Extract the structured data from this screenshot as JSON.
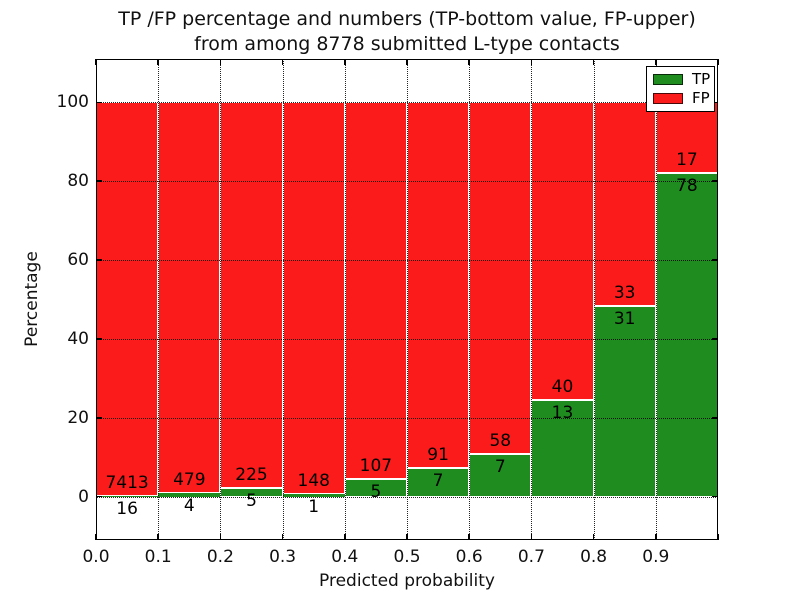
{
  "figure": {
    "title_line1": "TP /FP percentage and numbers (TP-bottom value, FP-upper)",
    "title_line2": "from among 8778 submitted L-type contacts"
  },
  "axes": {
    "xlabel": "Predicted probability",
    "ylabel": "Percentage",
    "x_tick_labels": [
      "0.0",
      "0.1",
      "0.2",
      "0.3",
      "0.4",
      "0.5",
      "0.6",
      "0.7",
      "0.8",
      "0.9"
    ],
    "y_tick_labels": [
      "0",
      "20",
      "40",
      "60",
      "80",
      "100"
    ],
    "y_tick_values": [
      0,
      20,
      40,
      60,
      80,
      100
    ]
  },
  "legend": {
    "items": [
      {
        "label": "TP",
        "color": "#1e8c1e"
      },
      {
        "label": "FP",
        "color": "#fb1b1b"
      }
    ]
  },
  "chart_data": {
    "type": "bar",
    "stacked": true,
    "orientation": "vertical",
    "title": "TP /FP percentage and numbers (TP-bottom value, FP-upper) from among 8778 submitted L-type contacts",
    "xlabel": "Predicted probability",
    "ylabel": "Percentage",
    "x_bins": [
      0.0,
      0.1,
      0.2,
      0.3,
      0.4,
      0.5,
      0.6,
      0.7,
      0.8,
      0.9
    ],
    "bin_width": 0.1,
    "series": [
      {
        "name": "TP",
        "color": "#1e8c1e",
        "counts": [
          16,
          4,
          5,
          1,
          5,
          7,
          7,
          13,
          31,
          78
        ],
        "percent": [
          0.22,
          0.83,
          2.17,
          0.67,
          4.46,
          7.14,
          10.77,
          24.53,
          48.44,
          82.11
        ]
      },
      {
        "name": "FP",
        "color": "#fb1b1b",
        "counts": [
          7413,
          479,
          225,
          148,
          107,
          91,
          58,
          40,
          33,
          17
        ],
        "percent": [
          99.78,
          99.17,
          97.83,
          99.33,
          95.54,
          92.86,
          89.23,
          75.47,
          51.56,
          17.89
        ]
      }
    ],
    "label_scheme": "FP count above segment boundary, TP count below segment boundary",
    "xlim": [
      0.0,
      1.0
    ],
    "ylim": [
      -11,
      111
    ],
    "grid": true,
    "grid_style": "dotted",
    "legend_position": "upper right",
    "total_contacts": 8778
  }
}
